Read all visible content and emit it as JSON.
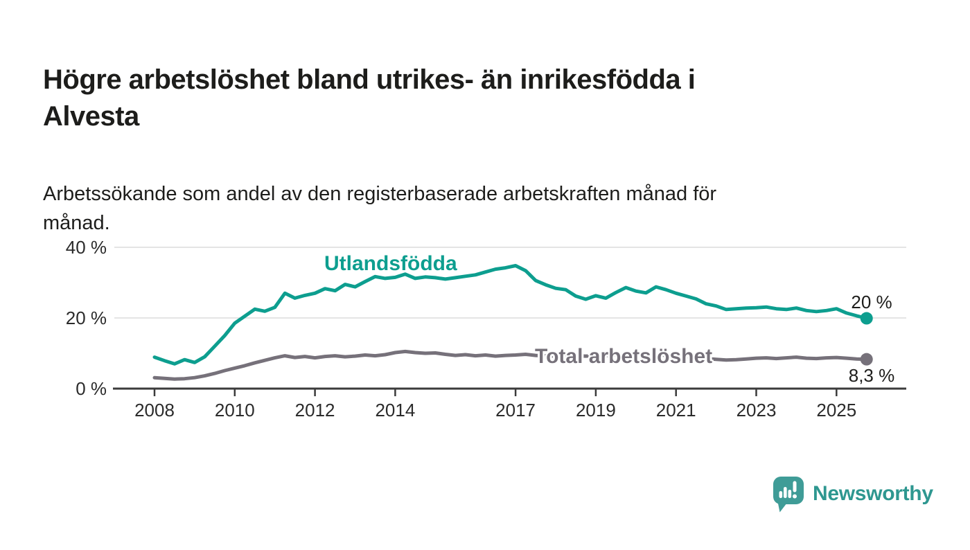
{
  "header": {
    "title": "Högre arbetslöshet bland utrikes- än inrikesfödda i Alvesta",
    "title_lines": [
      "Högre arbetslöshet bland utrikes- än inrikesfödda i",
      "Alvesta"
    ],
    "subtitle": "Arbetssökande som andel av den registerbaserade arbetskraften månad för månad.",
    "subtitle_lines": [
      "Arbetssökande som andel av den registerbaserade arbetskraften månad för",
      "månad."
    ]
  },
  "chart_data": {
    "type": "line",
    "title": "Högre arbetslöshet bland utrikes- än inrikesfödda i Alvesta",
    "xlabel": "",
    "ylabel": "",
    "x_unit": "year (monthly series)",
    "ylim": [
      0,
      43
    ],
    "xlim": [
      2007,
      2026.6
    ],
    "grid": "horizontal",
    "legend_position": "inline-labels",
    "colors": {
      "utlandsfodda": "#0d9e8f",
      "total": "#76717a",
      "axis": "#3b3b3b",
      "gridline": "#dcdcdc"
    },
    "yticks": [
      {
        "value": 0,
        "label": "0 %"
      },
      {
        "value": 20,
        "label": "20 %"
      },
      {
        "value": 40,
        "label": "40 %"
      }
    ],
    "xticks": [
      {
        "value": 2008,
        "label": "2008"
      },
      {
        "value": 2010,
        "label": "2010"
      },
      {
        "value": 2012,
        "label": "2012"
      },
      {
        "value": 2014,
        "label": "2014"
      },
      {
        "value": 2017,
        "label": "2017"
      },
      {
        "value": 2019,
        "label": "2019"
      },
      {
        "value": 2021,
        "label": "2021"
      },
      {
        "value": 2023,
        "label": "2023"
      },
      {
        "value": 2025,
        "label": "2025"
      }
    ],
    "x": [
      2008,
      2008.25,
      2008.5,
      2008.75,
      2009,
      2009.25,
      2009.5,
      2009.75,
      2010,
      2010.25,
      2010.5,
      2010.75,
      2011,
      2011.25,
      2011.5,
      2011.75,
      2012,
      2012.25,
      2012.5,
      2012.75,
      2013,
      2013.25,
      2013.5,
      2013.75,
      2014,
      2014.25,
      2014.5,
      2014.75,
      2015,
      2015.25,
      2015.5,
      2015.75,
      2016,
      2016.25,
      2016.5,
      2016.75,
      2017,
      2017.25,
      2017.5,
      2017.75,
      2018,
      2018.25,
      2018.5,
      2018.75,
      2019,
      2019.25,
      2019.5,
      2019.75,
      2020,
      2020.25,
      2020.5,
      2020.75,
      2021,
      2021.25,
      2021.5,
      2021.75,
      2022,
      2022.25,
      2022.5,
      2022.75,
      2023,
      2023.25,
      2023.5,
      2023.75,
      2024,
      2024.25,
      2024.5,
      2024.75,
      2025,
      2025.25,
      2025.5,
      2025.75
    ],
    "series": [
      {
        "name": "Utlandsfödda",
        "color": "#0d9e8f",
        "end_label": "20 %",
        "end_value_display": "20 %",
        "values": [
          8.9,
          7.9,
          7.0,
          8.2,
          7.4,
          9.0,
          12.0,
          15.0,
          18.5,
          20.5,
          22.5,
          21.9,
          23.0,
          27.0,
          25.6,
          26.4,
          27.0,
          28.3,
          27.7,
          29.5,
          28.8,
          30.3,
          31.7,
          31.2,
          31.5,
          32.4,
          31.2,
          31.6,
          31.4,
          31.0,
          31.4,
          31.8,
          32.2,
          33.0,
          33.8,
          34.2,
          34.8,
          33.4,
          30.6,
          29.4,
          28.4,
          28.0,
          26.2,
          25.3,
          26.3,
          25.6,
          27.2,
          28.6,
          27.6,
          27.1,
          28.8,
          28.0,
          27.0,
          26.2,
          25.4,
          24.0,
          23.4,
          22.4,
          22.6,
          22.8,
          22.9,
          23.1,
          22.6,
          22.4,
          22.8,
          22.1,
          21.8,
          22.1,
          22.6,
          21.4,
          20.6,
          19.9
        ]
      },
      {
        "name": "Total arbetslöshet",
        "color": "#76717a",
        "end_label": "8,3 %",
        "end_value_display": "8,3 %",
        "values": [
          3.1,
          2.9,
          2.7,
          2.8,
          3.1,
          3.6,
          4.3,
          5.1,
          5.8,
          6.5,
          7.3,
          8.0,
          8.7,
          9.3,
          8.8,
          9.1,
          8.7,
          9.1,
          9.3,
          9.0,
          9.2,
          9.5,
          9.3,
          9.6,
          10.2,
          10.5,
          10.2,
          10.0,
          10.1,
          9.7,
          9.4,
          9.6,
          9.3,
          9.5,
          9.2,
          9.4,
          9.5,
          9.7,
          9.4,
          9.3,
          9.2,
          9.4,
          9.3,
          9.2,
          9.3,
          9.4,
          9.5,
          9.7,
          9.6,
          9.9,
          9.7,
          9.4,
          9.2,
          9.0,
          8.8,
          8.5,
          8.3,
          8.1,
          8.2,
          8.4,
          8.6,
          8.7,
          8.5,
          8.7,
          8.9,
          8.6,
          8.5,
          8.7,
          8.8,
          8.6,
          8.4,
          8.3
        ]
      }
    ]
  },
  "footer": {
    "brand": "Newsworthy"
  }
}
